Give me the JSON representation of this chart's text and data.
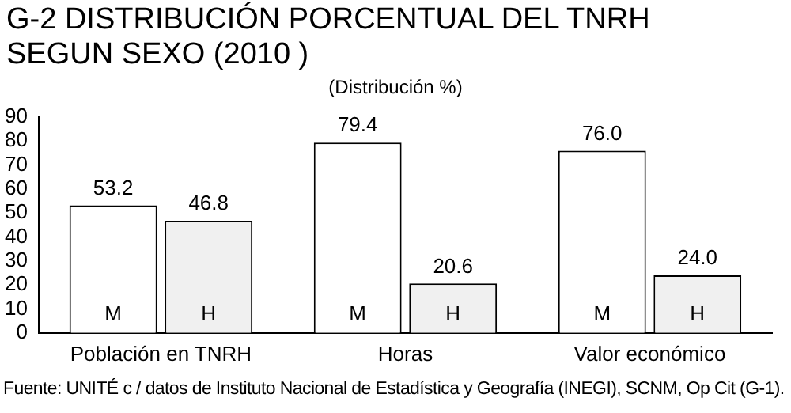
{
  "chart_data": {
    "type": "bar",
    "title": "G-2 DISTRIBUCIÓN PORCENTUAL DEL TNRH SEGUN SEXO (2010 )",
    "subtitle": "(Distribución %)",
    "categories": [
      "Población en TNRH",
      "Horas",
      "Valor económico"
    ],
    "series": [
      {
        "name": "M",
        "color": "#ffffff",
        "values": [
          53.2,
          79.4,
          76.0
        ],
        "value_labels": [
          "53.2",
          "79.4",
          "76.0"
        ]
      },
      {
        "name": "H",
        "color": "#f0f0f0",
        "values": [
          46.8,
          20.6,
          24.0
        ],
        "value_labels": [
          "46.8",
          "20.6",
          "24.0"
        ]
      }
    ],
    "ylim": [
      0,
      90
    ],
    "yticks": [
      0,
      10,
      20,
      30,
      40,
      50,
      60,
      70,
      80,
      90
    ],
    "grid": false,
    "legend": false,
    "annotations": [
      "Fuente: UNITÉ c / datos de Instituto Nacional de Estadística y Geografía (INEGI), SCNM, Op Cit (G-1)."
    ]
  }
}
